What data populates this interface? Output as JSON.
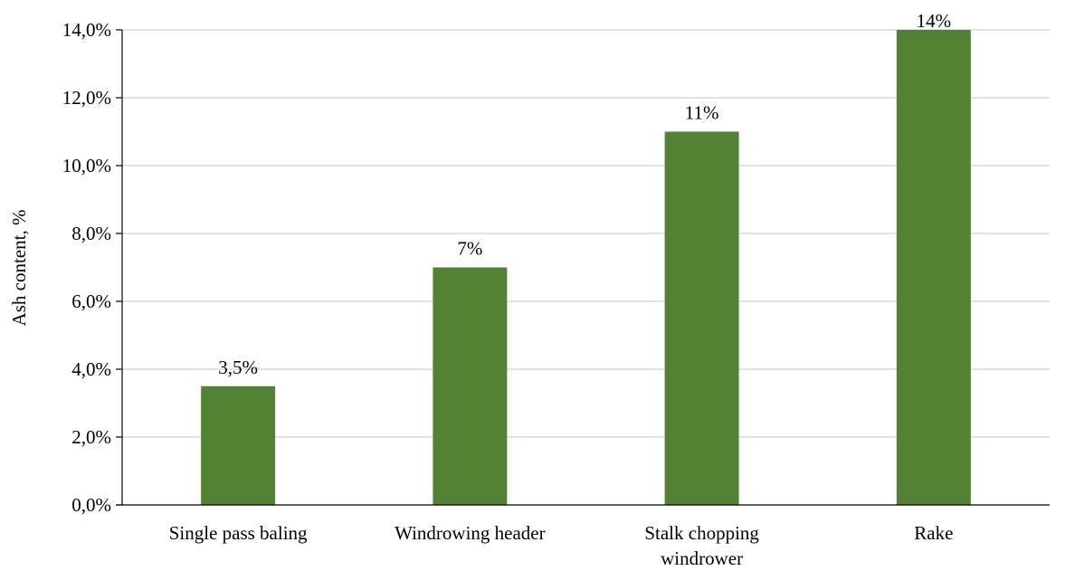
{
  "chart_data": {
    "type": "bar",
    "categories": [
      [
        "Single pass baling"
      ],
      [
        "Windrowing header"
      ],
      [
        "Stalk chopping",
        "windrower"
      ],
      [
        "Rake"
      ]
    ],
    "values": [
      3.5,
      7,
      11,
      14
    ],
    "data_labels": [
      "3,5%",
      "7%",
      "11%",
      "14%"
    ],
    "ylabel": "Ash content, %",
    "ylim": [
      0,
      14
    ],
    "yticks": [
      0,
      2,
      4,
      6,
      8,
      10,
      12,
      14
    ],
    "ytick_labels": [
      "0,0%",
      "2,0%",
      "4,0%",
      "6,0%",
      "8,0%",
      "10,0%",
      "12,0%",
      "14,0%"
    ],
    "grid": true,
    "legend": "none",
    "bar_color": "#548235",
    "grid_color": "#d9d9d9",
    "axis_color": "#000000"
  }
}
